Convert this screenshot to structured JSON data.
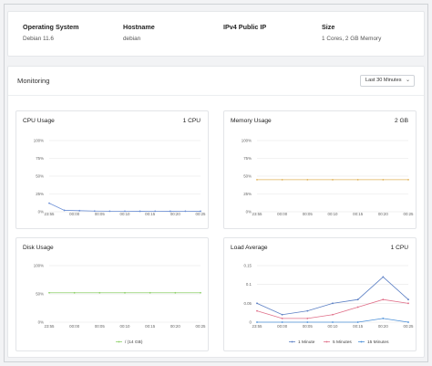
{
  "info": {
    "os_label": "Operating System",
    "os_value": "Debian 11.6",
    "host_label": "Hostname",
    "host_value": "debian",
    "ip_label": "IPv4 Public IP",
    "ip_value": "",
    "size_label": "Size",
    "size_value": "1 Cores, 2 GB Memory"
  },
  "monitoring": {
    "title": "Monitoring",
    "range": "Last 30 Minutes",
    "chevron_icon": "chevron-down-icon"
  },
  "colors": {
    "cpu": "#6b8fd6",
    "memory": "#e0b35a",
    "disk": "#8fd16a",
    "load1": "#5b7fc4",
    "load5": "#e0708a",
    "load15": "#4a8fd8",
    "grid": "#e6e6e6"
  },
  "panels": {
    "cpu": {
      "title": "CPU Usage",
      "right": "1 CPU"
    },
    "memory": {
      "title": "Memory Usage",
      "right": "2 GB"
    },
    "disk": {
      "title": "Disk Usage",
      "right": ""
    },
    "load": {
      "title": "Load Average",
      "right": "1 CPU"
    }
  },
  "chart_data": [
    {
      "id": "cpu",
      "type": "line",
      "grid": true,
      "categories": [
        "23:55",
        "00:00",
        "00:05",
        "00:10",
        "00:15",
        "00:20",
        "00:25"
      ],
      "x": [
        0,
        0.6,
        1.2,
        1.8,
        2.4,
        3.0,
        3.6,
        4.2,
        4.8,
        5.4,
        6.0
      ],
      "y_ticks": [
        "100%",
        "75%",
        "50%",
        "25%",
        "0%"
      ],
      "ylim": [
        0,
        100
      ],
      "series": [
        {
          "values": [
            12,
            2,
            1.5,
            1,
            0.8,
            0.8,
            0.7,
            0.8,
            0.7,
            0.8,
            0.7
          ]
        }
      ]
    },
    {
      "id": "memory",
      "type": "line",
      "grid": true,
      "categories": [
        "23:55",
        "00:00",
        "00:05",
        "00:10",
        "00:15",
        "00:20",
        "00:25"
      ],
      "x": [
        0,
        1,
        2,
        3,
        4,
        5,
        6
      ],
      "y_ticks": [
        "100%",
        "75%",
        "50%",
        "25%",
        "0%"
      ],
      "ylim": [
        0,
        100
      ],
      "series": [
        {
          "values": [
            45,
            45,
            45,
            45,
            45,
            45,
            45
          ]
        }
      ]
    },
    {
      "id": "disk",
      "type": "line",
      "grid": true,
      "categories": [
        "23:55",
        "00:00",
        "00:05",
        "00:10",
        "00:15",
        "00:20",
        "00:25"
      ],
      "x": [
        0,
        1,
        2,
        3,
        4,
        5,
        6
      ],
      "y_ticks": [
        "100%",
        "50%",
        "0%"
      ],
      "ylim": [
        0,
        100
      ],
      "series": [
        {
          "name": "/ (14 GB)",
          "values": [
            52,
            52,
            52,
            52,
            52,
            52,
            52
          ]
        }
      ]
    },
    {
      "id": "load",
      "type": "line",
      "grid": true,
      "categories": [
        "23:55",
        "00:00",
        "00:05",
        "00:10",
        "00:15",
        "00:20",
        "00:25"
      ],
      "x": [
        0,
        1,
        2,
        3,
        4,
        5,
        6
      ],
      "y_ticks": [
        "0.15",
        "0.1",
        "0.05",
        "0"
      ],
      "ylim": [
        0,
        0.15
      ],
      "series": [
        {
          "name": "1 Minute",
          "values": [
            0.05,
            0.02,
            0.03,
            0.05,
            0.06,
            0.12,
            0.06
          ]
        },
        {
          "name": "5 Minutes",
          "values": [
            0.03,
            0.01,
            0.01,
            0.02,
            0.04,
            0.06,
            0.05
          ]
        },
        {
          "name": "15 Minutes",
          "values": [
            0.0,
            0.0,
            0.0,
            0.0,
            0.0,
            0.01,
            0.0
          ]
        }
      ]
    }
  ]
}
